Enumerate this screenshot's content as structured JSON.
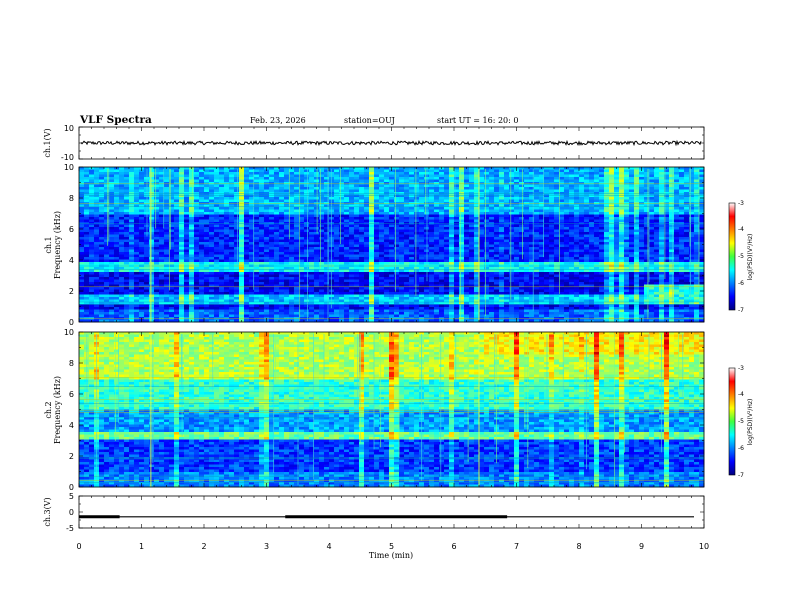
{
  "header": {
    "title": "VLF Spectra",
    "date": "Feb. 23, 2026",
    "station": "station=OUJ",
    "start_ut": "start  UT =   16: 20: 0"
  },
  "chart_data": [
    {
      "type": "line",
      "name": "ch1-waveform",
      "ylabel": "ch.1(V)",
      "ylim": [
        -10,
        10
      ],
      "yticks": [
        "10",
        "-10"
      ],
      "mean_level": 0,
      "color": "#000000"
    },
    {
      "type": "heatmap",
      "name": "ch1-spectrogram",
      "ylabel": "ch.1\nFrequency  (kHz)",
      "ylabel_line1": "ch.1",
      "ylabel_line2": "Frequency  (kHz)",
      "ylim": [
        0,
        10
      ],
      "yticks": [
        "0",
        "2",
        "4",
        "6",
        "8",
        "10"
      ],
      "colorbar": {
        "label": "log(PSD)(V²/Hz)",
        "range": [
          -7,
          -3
        ],
        "ticks": [
          "-3",
          "-4",
          "-5",
          "-6",
          "-7"
        ]
      }
    },
    {
      "type": "heatmap",
      "name": "ch2-spectrogram",
      "ylabel_line1": "ch.2",
      "ylabel_line2": "Frequency  (kHz)",
      "ylim": [
        0,
        10
      ],
      "yticks": [
        "0",
        "2",
        "4",
        "6",
        "8",
        "10"
      ],
      "colorbar": {
        "label": "log(PSD)(V²/Hz)",
        "range": [
          -7,
          -3
        ],
        "ticks": [
          "-3",
          "-4",
          "-5",
          "-6",
          "-7"
        ]
      }
    },
    {
      "type": "line",
      "name": "ch3-signal",
      "ylabel": "ch.3(V)",
      "ylim": [
        -5,
        5
      ],
      "yticks": [
        "5",
        "0",
        "-5"
      ],
      "level": -1.5,
      "thick_segments": [
        [
          0,
          0.65
        ],
        [
          3.3,
          6.85
        ]
      ]
    }
  ],
  "xaxis": {
    "label": "Time  (min)",
    "range": [
      0,
      10
    ],
    "ticks": [
      "0",
      "1",
      "2",
      "3",
      "4",
      "5",
      "6",
      "7",
      "8",
      "9",
      "10"
    ]
  }
}
